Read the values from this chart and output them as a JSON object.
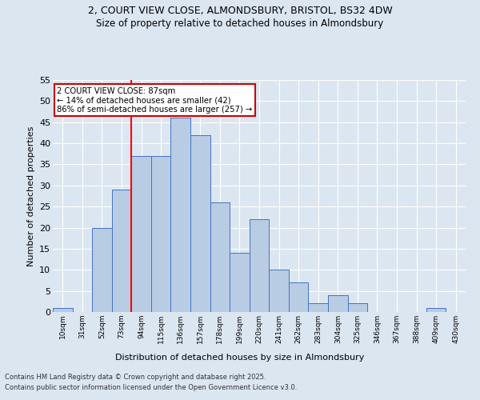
{
  "title_line1": "2, COURT VIEW CLOSE, ALMONDSBURY, BRISTOL, BS32 4DW",
  "title_line2": "Size of property relative to detached houses in Almondsbury",
  "xlabel": "Distribution of detached houses by size in Almondsbury",
  "ylabel": "Number of detached properties",
  "footer_line1": "Contains HM Land Registry data © Crown copyright and database right 2025.",
  "footer_line2": "Contains public sector information licensed under the Open Government Licence v3.0.",
  "bin_labels": [
    "10sqm",
    "31sqm",
    "52sqm",
    "73sqm",
    "94sqm",
    "115sqm",
    "136sqm",
    "157sqm",
    "178sqm",
    "199sqm",
    "220sqm",
    "241sqm",
    "262sqm",
    "283sqm",
    "304sqm",
    "325sqm",
    "346sqm",
    "367sqm",
    "388sqm",
    "409sqm",
    "430sqm"
  ],
  "values": [
    1,
    0,
    20,
    29,
    37,
    37,
    46,
    42,
    26,
    14,
    22,
    10,
    7,
    2,
    4,
    2,
    0,
    0,
    0,
    1,
    0
  ],
  "bar_color": "#b8cce4",
  "bar_edge_color": "#4472c4",
  "bg_color": "#dce6f1",
  "grid_color": "#ffffff",
  "annotation_text": "2 COURT VIEW CLOSE: 87sqm\n← 14% of detached houses are smaller (42)\n86% of semi-detached houses are larger (257) →",
  "annotation_box_color": "#ffffff",
  "annotation_box_edge_color": "#cc0000",
  "red_line_bin_index": 4,
  "ylim": [
    0,
    55
  ],
  "yticks": [
    0,
    5,
    10,
    15,
    20,
    25,
    30,
    35,
    40,
    45,
    50,
    55
  ]
}
